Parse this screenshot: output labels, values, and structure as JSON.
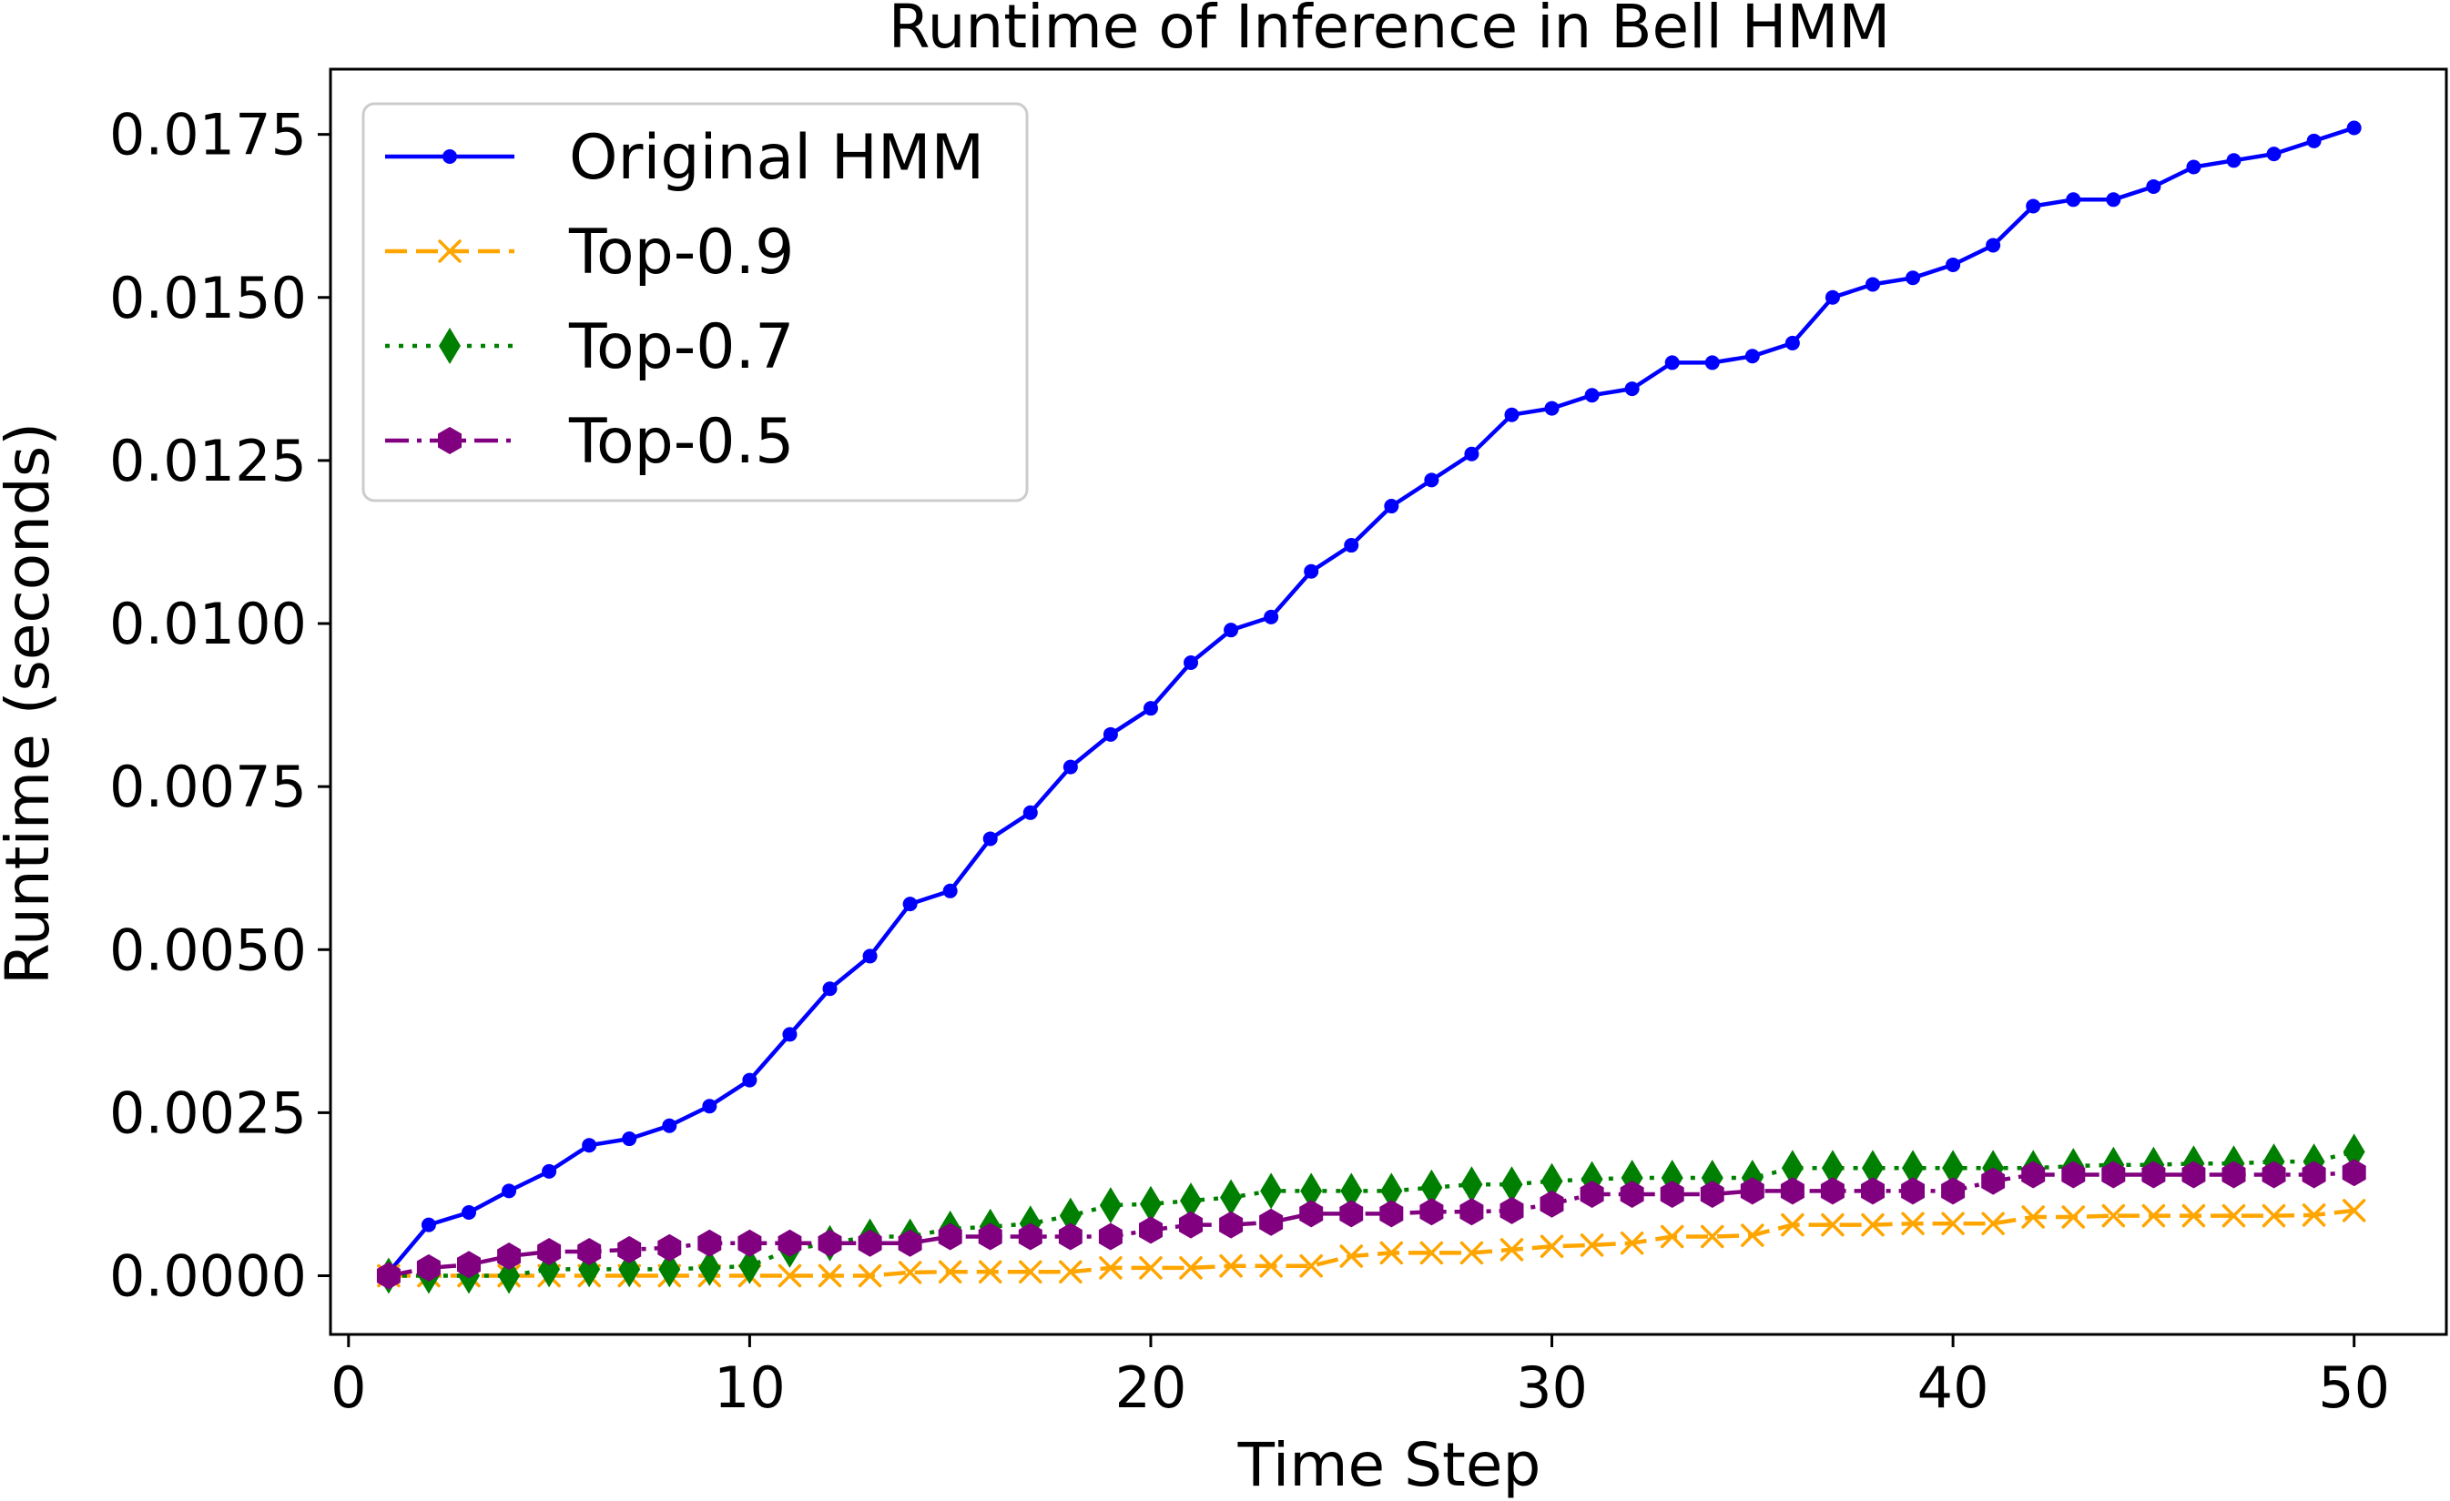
{
  "chart_data": {
    "type": "line",
    "title": "Runtime of Inference in Bell HMM",
    "xlabel": "Time Step",
    "ylabel": "Runtime (seconds)",
    "xlim": [
      -0.45,
      52.3
    ],
    "ylim": [
      -0.0009,
      0.0185
    ],
    "xticks": [
      0,
      10,
      20,
      30,
      40,
      50
    ],
    "xtick_labels": [
      "0",
      "10",
      "20",
      "30",
      "40",
      "50"
    ],
    "yticks": [
      0.0,
      0.0025,
      0.005,
      0.0075,
      0.01,
      0.0125,
      0.015,
      0.0175
    ],
    "ytick_labels": [
      "0.0000",
      "0.0025",
      "0.0050",
      "0.0075",
      "0.0100",
      "0.0125",
      "0.0150",
      "0.0175"
    ],
    "grid": false,
    "legend_position": "top-left",
    "x": [
      1,
      2,
      3,
      4,
      5,
      6,
      7,
      8,
      9,
      10,
      11,
      12,
      13,
      14,
      15,
      16,
      17,
      18,
      19,
      20,
      21,
      22,
      23,
      24,
      25,
      26,
      27,
      28,
      29,
      30,
      31,
      32,
      33,
      34,
      35,
      36,
      37,
      38,
      39,
      40,
      41,
      42,
      43,
      44,
      45,
      46,
      47,
      48,
      49,
      50
    ],
    "series": [
      {
        "name": "Original HMM",
        "color": "#0000ff",
        "line_style": "solid",
        "marker": "dot",
        "values": [
          5e-05,
          0.00078,
          0.00097,
          0.0013,
          0.0016,
          0.002,
          0.0021,
          0.0023,
          0.0026,
          0.003,
          0.0037,
          0.0044,
          0.0049,
          0.0057,
          0.0059,
          0.0067,
          0.0071,
          0.0078,
          0.0083,
          0.0087,
          0.0094,
          0.0099,
          0.0101,
          0.0108,
          0.0112,
          0.0118,
          0.0122,
          0.0126,
          0.0132,
          0.0133,
          0.0135,
          0.0136,
          0.014,
          0.014,
          0.0141,
          0.0143,
          0.015,
          0.0152,
          0.0153,
          0.0155,
          0.0158,
          0.0164,
          0.0165,
          0.0165,
          0.0167,
          0.017,
          0.0171,
          0.0172,
          0.0174,
          0.0176
        ]
      },
      {
        "name": "Top-0.9",
        "color": "#ffa500",
        "line_style": "dashed",
        "marker": "x",
        "values": [
          0.0,
          0.0,
          0.0,
          0.0,
          0.0,
          0.0,
          0.0,
          0.0,
          0.0,
          0.0,
          0.0,
          0.0,
          0.0,
          5e-05,
          6e-05,
          6e-05,
          6e-05,
          6e-05,
          0.00012,
          0.00012,
          0.00012,
          0.00015,
          0.00015,
          0.00015,
          0.0003,
          0.00035,
          0.00035,
          0.00035,
          0.0004,
          0.00045,
          0.00047,
          0.0005,
          0.0006,
          0.0006,
          0.00062,
          0.00078,
          0.00078,
          0.00078,
          0.0008,
          0.0008,
          0.0008,
          0.0009,
          0.0009,
          0.00092,
          0.00092,
          0.00092,
          0.00092,
          0.00092,
          0.00093,
          0.001
        ]
      },
      {
        "name": "Top-0.7",
        "color": "#008000",
        "line_style": "dotted",
        "marker": "diamond",
        "values": [
          0.0,
          0.0,
          0.0,
          0.0,
          0.0001,
          0.0001,
          0.0001,
          0.0001,
          0.00012,
          0.00015,
          0.0004,
          0.0005,
          0.0006,
          0.0006,
          0.00072,
          0.00075,
          0.0008,
          0.00092,
          0.00108,
          0.0011,
          0.00115,
          0.0012,
          0.0013,
          0.0013,
          0.0013,
          0.0013,
          0.00135,
          0.0014,
          0.0014,
          0.00145,
          0.00148,
          0.0015,
          0.0015,
          0.0015,
          0.0015,
          0.00165,
          0.00165,
          0.00165,
          0.00165,
          0.00165,
          0.00165,
          0.00165,
          0.00168,
          0.0017,
          0.0017,
          0.00172,
          0.00172,
          0.00175,
          0.00175,
          0.0019
        ]
      },
      {
        "name": "Top-0.5",
        "color": "#800080",
        "line_style": "dashdot",
        "marker": "hexagon",
        "values": [
          0.0,
          0.00012,
          0.00017,
          0.0003,
          0.00037,
          0.00037,
          0.0004,
          0.00043,
          0.0005,
          0.0005,
          0.0005,
          0.0005,
          0.0005,
          0.0005,
          0.0006,
          0.0006,
          0.0006,
          0.0006,
          0.0006,
          0.0007,
          0.00078,
          0.00078,
          0.00082,
          0.00095,
          0.00095,
          0.00095,
          0.00098,
          0.00098,
          0.001,
          0.0011,
          0.00125,
          0.00125,
          0.00125,
          0.00125,
          0.0013,
          0.0013,
          0.0013,
          0.0013,
          0.0013,
          0.0013,
          0.00145,
          0.00155,
          0.00155,
          0.00155,
          0.00155,
          0.00155,
          0.00155,
          0.00155,
          0.00155,
          0.00158
        ]
      }
    ]
  }
}
